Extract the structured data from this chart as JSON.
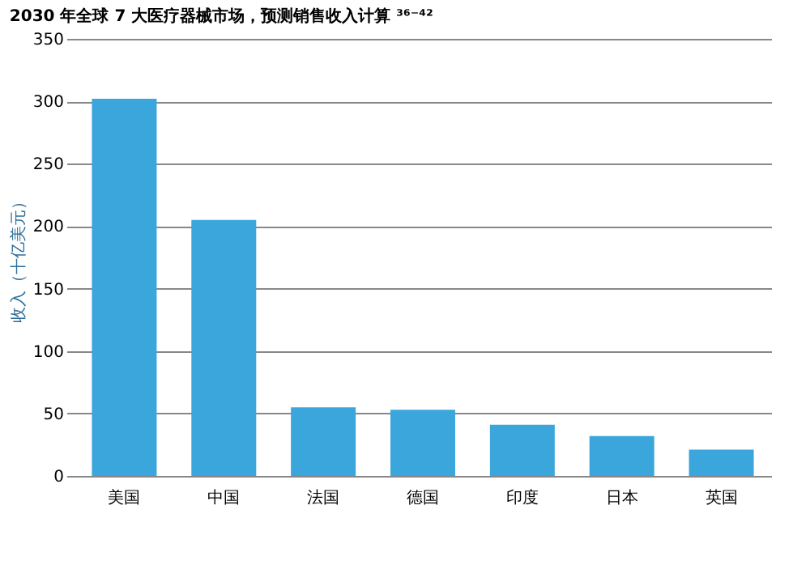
{
  "chart_data": {
    "type": "bar",
    "title": "2030 年全球 7 大医疗器械市场，预测销售收入计算 ³⁶⁻⁴²",
    "ylabel": "收入（十亿美元）",
    "categories": [
      "美国",
      "中国",
      "法国",
      "德国",
      "印度",
      "日本",
      "英国"
    ],
    "values": [
      302,
      205,
      55,
      53,
      41,
      32,
      21
    ],
    "color": "#3ba6dc",
    "ylim": [
      0,
      350
    ],
    "yticks": [
      0,
      50,
      100,
      150,
      200,
      250,
      300,
      350
    ],
    "grid": "y"
  }
}
